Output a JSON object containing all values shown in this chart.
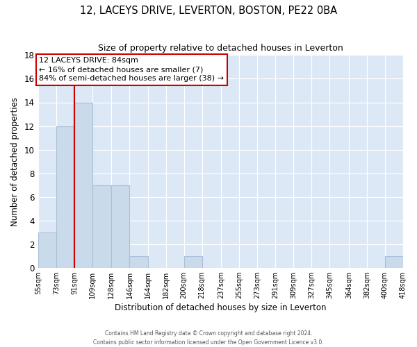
{
  "title": "12, LACEYS DRIVE, LEVERTON, BOSTON, PE22 0BA",
  "subtitle": "Size of property relative to detached houses in Leverton",
  "xlabel": "Distribution of detached houses by size in Leverton",
  "ylabel": "Number of detached properties",
  "bar_color": "#c9daea",
  "bar_edge_color": "#aac0d8",
  "annotation_line_color": "#cc0000",
  "bins": [
    55,
    73,
    91,
    109,
    128,
    146,
    164,
    182,
    200,
    218,
    237,
    255,
    273,
    291,
    309,
    327,
    345,
    364,
    382,
    400,
    418
  ],
  "bin_labels": [
    "55sqm",
    "73sqm",
    "91sqm",
    "109sqm",
    "128sqm",
    "146sqm",
    "164sqm",
    "182sqm",
    "200sqm",
    "218sqm",
    "237sqm",
    "255sqm",
    "273sqm",
    "291sqm",
    "309sqm",
    "327sqm",
    "345sqm",
    "364sqm",
    "382sqm",
    "400sqm",
    "418sqm"
  ],
  "counts": [
    3,
    12,
    14,
    7,
    7,
    1,
    0,
    0,
    1,
    0,
    0,
    0,
    0,
    0,
    0,
    0,
    0,
    0,
    0,
    1
  ],
  "property_line_x": 91,
  "annotation_title": "12 LACEYS DRIVE: 84sqm",
  "annotation_line1": "← 16% of detached houses are smaller (7)",
  "annotation_line2": "84% of semi-detached houses are larger (38) →",
  "ylim": [
    0,
    18
  ],
  "yticks": [
    0,
    2,
    4,
    6,
    8,
    10,
    12,
    14,
    16,
    18
  ],
  "footer_line1": "Contains HM Land Registry data © Crown copyright and database right 2024.",
  "footer_line2": "Contains public sector information licensed under the Open Government Licence v3.0.",
  "bg_color": "#dce8f5"
}
